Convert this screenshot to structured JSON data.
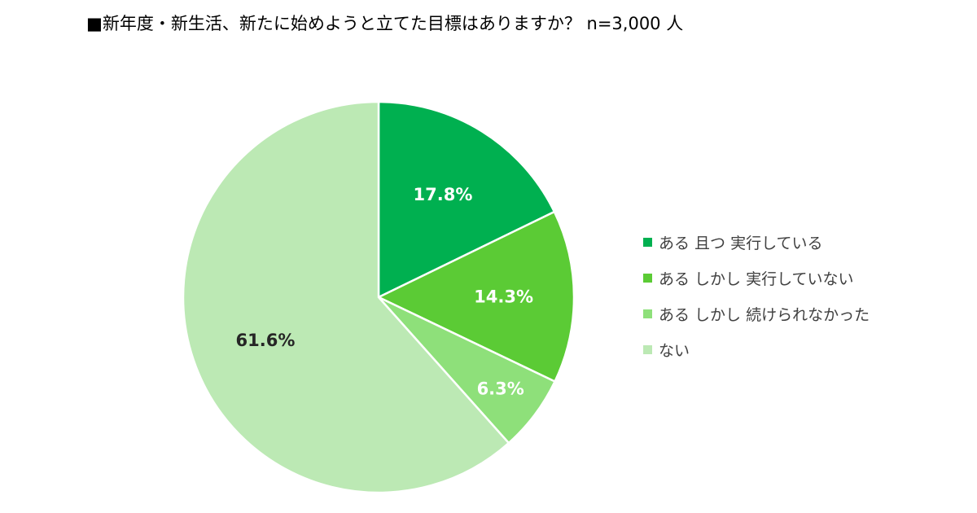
{
  "chart_data": {
    "type": "pie",
    "title": "■新年度・新生活、新たに始めようと立てた目標はありますか？ n=3,000 人",
    "categories": [
      "ある 且つ 実行している",
      "あるしかし 実行していない",
      "あるしかし 続けられなかった",
      "ない"
    ],
    "values": [
      17.8,
      14.3,
      6.3,
      61.6
    ],
    "value_labels": [
      "17.8%",
      "14.3%",
      "6.3%",
      "61.6%"
    ],
    "colors": [
      "#00B050",
      "#5BCB35",
      "#8EE07A",
      "#BCE9B4"
    ],
    "label_colors": [
      "#ffffff",
      "#ffffff",
      "#ffffff",
      "#262626"
    ],
    "legend_position": "right",
    "start_angle": "12 o'clock",
    "direction": "clockwise"
  },
  "legend": {
    "items": [
      {
        "label": "ある 且つ 実行している",
        "color": "#00B050"
      },
      {
        "label": "ある しかし 実行していない",
        "color": "#5BCB35"
      },
      {
        "label": "ある しかし 続けられなかった",
        "color": "#8EE07A"
      },
      {
        "label": "ない",
        "color": "#BCE9B4"
      }
    ]
  }
}
